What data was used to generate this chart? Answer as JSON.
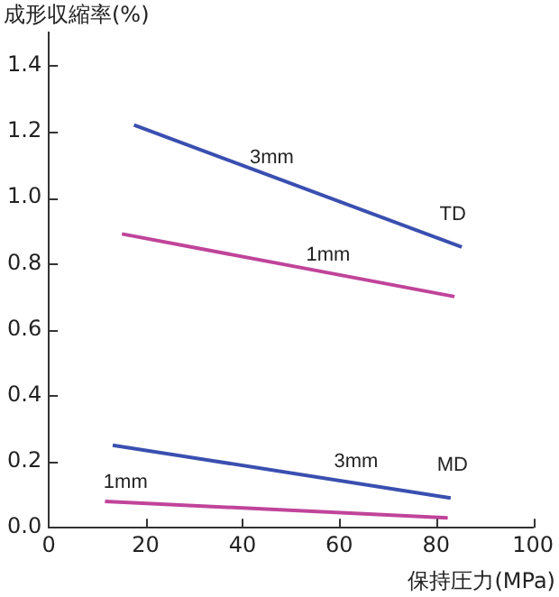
{
  "chart_data": {
    "type": "line",
    "xlabel": "保持圧力(MPa)",
    "ylabel": "成形収縮率(%)",
    "series": [
      {
        "name": "3mm",
        "color": "#3a4fb0",
        "x": [
          17.6,
          85.3
        ],
        "values": [
          1.22,
          0.85
        ]
      },
      {
        "name": "1mm",
        "color": "#c0449a",
        "x": [
          15.1,
          83.8
        ],
        "values": [
          0.89,
          0.7
        ]
      },
      {
        "name": "3mm",
        "color": "#3a4fb0",
        "x": [
          13.2,
          83
        ],
        "values": [
          0.25,
          0.09
        ]
      },
      {
        "name": "1mm",
        "color": "#c0449a",
        "x": [
          11.6,
          82.4
        ],
        "values": [
          0.08,
          0.03
        ]
      }
    ],
    "xlim": [
      0,
      100
    ],
    "xticks": [
      0,
      20,
      40,
      60,
      80,
      100
    ],
    "ylim": [
      0,
      1.5
    ],
    "yticks": [
      {
        "value": 0,
        "label": "0.0"
      },
      0.2,
      0.4,
      0.6,
      0.8,
      {
        "value": 1,
        "label": "1.0"
      },
      1.2,
      1.4
    ],
    "annotations": [
      "TD",
      "MD"
    ],
    "grid": false,
    "legend": false,
    "marker": "none",
    "line_style": "solid"
  }
}
